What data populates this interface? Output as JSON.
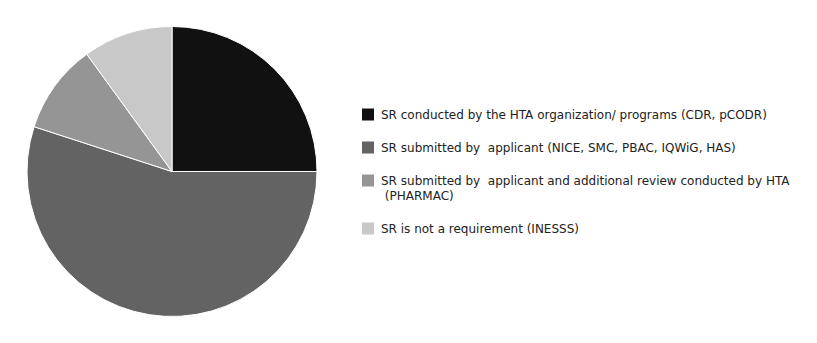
{
  "chart_data": {
    "type": "pie",
    "categories": [
      "SR conducted by the HTA organization/ programs (CDR, pCODR)",
      "SR submitted by  applicant (NICE, SMC, PBAC, IQWiG, HAS)",
      "SR submitted by  applicant and additional review conducted by HTA\n (PHARMAC)",
      "SR is not a requirement (INESSS)"
    ],
    "values": [
      25,
      55,
      10,
      10
    ],
    "colors": [
      "#111111",
      "#636363",
      "#959595",
      "#c8c8c8"
    ],
    "legend": "right"
  }
}
